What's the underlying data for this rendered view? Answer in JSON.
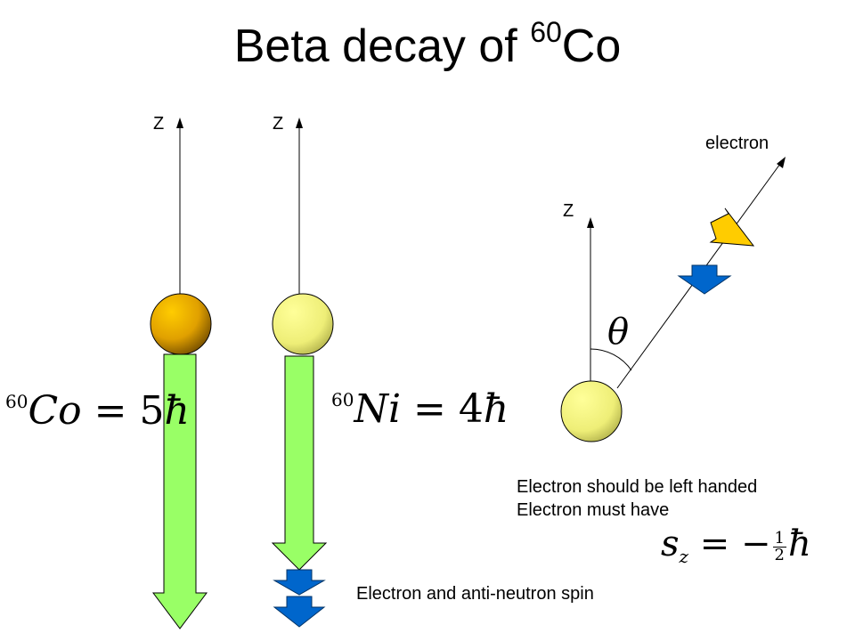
{
  "title": {
    "text": "Beta decay of ",
    "sup": "60",
    "element": "Co"
  },
  "axes": {
    "z_left": "Z",
    "z_mid": "Z",
    "z_right": "Z"
  },
  "labels": {
    "electron": "electron",
    "electron_antineutron": "Electron and anti-neutron spin",
    "left_handed": "Electron should be left handed",
    "must_have": "Electron must have"
  },
  "equations": {
    "co": {
      "prefix": "60",
      "symbol": "Co",
      "rhs_num": "5",
      "hbar": "ħ"
    },
    "ni": {
      "prefix": "60",
      "symbol": "Ni",
      "rhs_num": "4",
      "hbar": "ħ"
    },
    "sz": {
      "s": "s",
      "sub": "z",
      "equals": "= −",
      "num": "1",
      "den": "2",
      "hbar": "ħ"
    },
    "theta": "θ"
  },
  "colors": {
    "co_nucleus": "#E6A300",
    "ni_nucleus": "#F2F27A",
    "spin_arrow": "#99FF66",
    "blue_arrow": "#0066CC",
    "yellow_arrow": "#FFCC00"
  }
}
